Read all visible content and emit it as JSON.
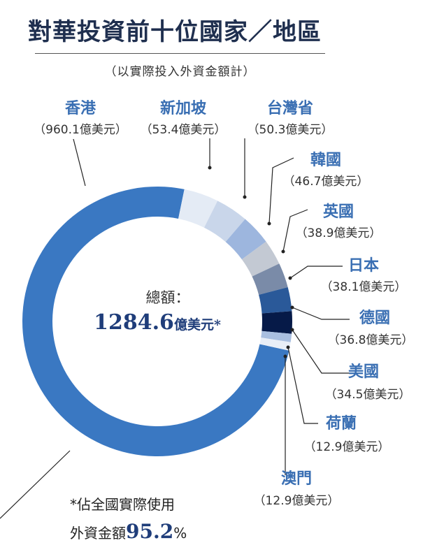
{
  "title": "對華投資前十位國家／地區",
  "subtitle": "（以實際投入外資金額計）",
  "total": {
    "label": "總額：",
    "value": "1284.6",
    "unit": "億美元*"
  },
  "footnote": {
    "line1": "*佔全國實際使用",
    "line2_prefix": "外資金額",
    "percent": "95.2",
    "percent_sign": "%"
  },
  "colors": {
    "accent": "#3a6fb3",
    "hongkong": "#3a78c2",
    "singapore": "#e4ebf5",
    "taiwan": "#c9d6ea",
    "korea": "#9db6de",
    "uk": "#c3c9d3",
    "japan": "#7a8ba8",
    "germany": "#2a5999",
    "usa": "#061a48",
    "netherlands": "#a9bfe0",
    "macau": "#e8eef7"
  },
  "chart_data": {
    "type": "pie",
    "unit": "億美元",
    "slices": [
      {
        "name": "香港",
        "value": 960.1,
        "value_text": "（960.1億美元）"
      },
      {
        "name": "新加坡",
        "value": 53.4,
        "value_text": "（53.4億美元）"
      },
      {
        "name": "台灣省",
        "value": 50.3,
        "value_text": "（50.3億美元）"
      },
      {
        "name": "韓國",
        "value": 46.7,
        "value_text": "（46.7億美元）"
      },
      {
        "name": "英國",
        "value": 38.9,
        "value_text": "（38.9億美元）"
      },
      {
        "name": "日本",
        "value": 38.1,
        "value_text": "（38.1億美元）"
      },
      {
        "name": "德國",
        "value": 36.8,
        "value_text": "（36.8億美元）"
      },
      {
        "name": "美國",
        "value": 34.5,
        "value_text": "（34.5億美元）"
      },
      {
        "name": "荷蘭",
        "value": 12.9,
        "value_text": "（12.9億美元）"
      },
      {
        "name": "澳門",
        "value": 12.9,
        "value_text": "（12.9億美元）"
      }
    ]
  }
}
